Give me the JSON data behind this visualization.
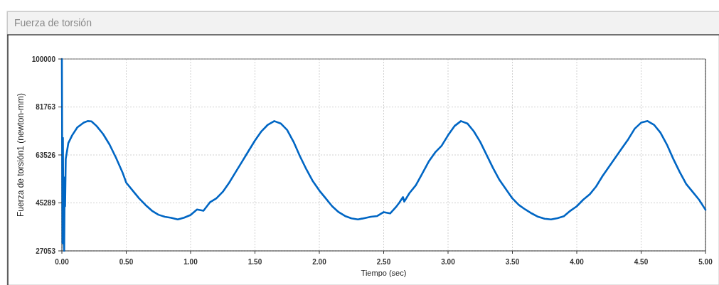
{
  "chart_data": {
    "type": "line",
    "title": "Fuerza de torsión",
    "xlabel": "Tiempo (sec)",
    "ylabel": "Fuerza de torsión1 (newton-mm)",
    "xlim": [
      0,
      5
    ],
    "xticks": [
      {
        "value": 0,
        "label": "0.00"
      },
      {
        "value": 0.5,
        "label": "0.50"
      },
      {
        "value": 1,
        "label": "1.00"
      },
      {
        "value": 1.5,
        "label": "1.50"
      },
      {
        "value": 2,
        "label": "2.00"
      },
      {
        "value": 2.5,
        "label": "2.50"
      },
      {
        "value": 3,
        "label": "3.00"
      },
      {
        "value": 3.5,
        "label": "3.50"
      },
      {
        "value": 4,
        "label": "4.00"
      },
      {
        "value": 4.5,
        "label": "4.50"
      },
      {
        "value": 5,
        "label": "5.00"
      }
    ],
    "ylim": [
      27053,
      100000
    ],
    "yticks": [
      27053,
      45289,
      63526,
      81763,
      100000
    ],
    "grid": true,
    "marker": "none",
    "line_style": "solid",
    "series": [
      {
        "color": "#0066c4",
        "x": [
          0,
          0.005,
          0.008,
          0.012,
          0.018,
          0.022,
          0.025,
          0.03,
          0.05,
          0.08,
          0.12,
          0.17,
          0.2,
          0.23,
          0.27,
          0.32,
          0.37,
          0.42,
          0.47,
          0.5,
          0.55,
          0.6,
          0.65,
          0.7,
          0.75,
          0.8,
          0.85,
          0.9,
          0.95,
          1,
          1.05,
          1.1,
          1.15,
          1.2,
          1.25,
          1.3,
          1.35,
          1.4,
          1.45,
          1.5,
          1.55,
          1.6,
          1.65,
          1.7,
          1.75,
          1.8,
          1.85,
          1.9,
          1.95,
          2,
          2.05,
          2.1,
          2.15,
          2.2,
          2.25,
          2.3,
          2.35,
          2.4,
          2.45,
          2.5,
          2.55,
          2.6,
          2.62,
          2.65,
          2.66,
          2.7,
          2.75,
          2.8,
          2.85,
          2.9,
          2.95,
          3,
          3.05,
          3.1,
          3.15,
          3.2,
          3.25,
          3.3,
          3.35,
          3.4,
          3.45,
          3.5,
          3.55,
          3.6,
          3.65,
          3.7,
          3.75,
          3.8,
          3.85,
          3.9,
          3.95,
          4,
          4.05,
          4.1,
          4.15,
          4.2,
          4.25,
          4.3,
          4.35,
          4.4,
          4.45,
          4.5,
          4.55,
          4.6,
          4.65,
          4.7,
          4.75,
          4.8,
          4.85,
          4.9,
          4.95,
          5
        ],
        "values": [
          100000,
          30000,
          70000,
          33000,
          27100,
          55000,
          44000,
          62000,
          68000,
          71000,
          74000,
          75800,
          76400,
          76300,
          74500,
          71500,
          67500,
          62500,
          57000,
          53000,
          50000,
          47000,
          44500,
          42300,
          40800,
          40000,
          39600,
          39000,
          39700,
          40700,
          42800,
          42300,
          45500,
          47000,
          49500,
          53000,
          57000,
          61000,
          65000,
          69000,
          72500,
          75000,
          76400,
          75500,
          73000,
          68500,
          63000,
          58000,
          53500,
          50000,
          47000,
          44000,
          41800,
          40300,
          39400,
          39000,
          39500,
          40000,
          40300,
          41800,
          41300,
          44000,
          45300,
          47500,
          45800,
          49000,
          52000,
          56500,
          61000,
          64500,
          67000,
          71000,
          74500,
          76400,
          75500,
          72500,
          68500,
          63500,
          58500,
          54000,
          50500,
          47000,
          44500,
          42800,
          41300,
          40000,
          39300,
          39000,
          39500,
          40200,
          42300,
          44000,
          46500,
          48500,
          51500,
          55500,
          59000,
          62500,
          66000,
          69500,
          73500,
          75800,
          76400,
          75000,
          72000,
          67500,
          62000,
          57000,
          52500,
          49500,
          46500,
          42700
        ]
      }
    ]
  }
}
